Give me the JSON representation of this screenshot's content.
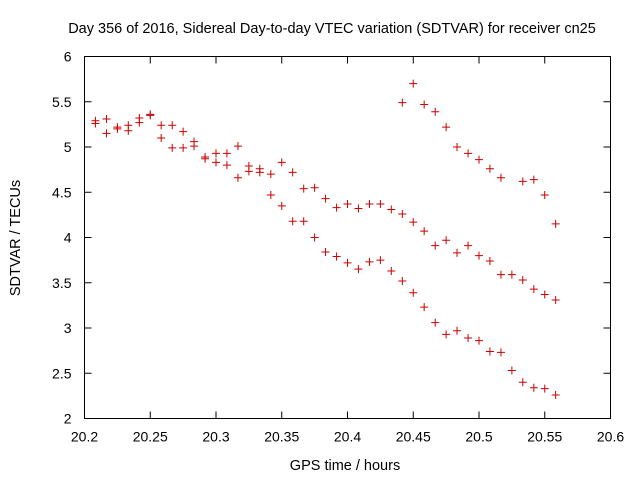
{
  "chart_data": {
    "type": "scatter",
    "title": "Day 356 of 2016, Sidereal Day-to-day VTEC variation (SDTVAR) for receiver cn25",
    "xlabel": "GPS time / hours",
    "ylabel": "SDTVAR / TECUs",
    "xlim": [
      20.2,
      20.6
    ],
    "ylim": [
      2,
      6
    ],
    "xticks": [
      "20.2",
      "20.25",
      "20.3",
      "20.35",
      "20.4",
      "20.45",
      "20.5",
      "20.55",
      "20.6"
    ],
    "yticks": [
      "2",
      "2.5",
      "3",
      "3.5",
      "4",
      "4.5",
      "5",
      "5.5",
      "6"
    ],
    "grid": false,
    "marker": "+",
    "marker_color": "#cc0000",
    "series": [
      {
        "name": "SDTVAR",
        "points": [
          [
            20.2083,
            5.29
          ],
          [
            20.2083,
            5.26
          ],
          [
            20.2167,
            5.31
          ],
          [
            20.2167,
            5.15
          ],
          [
            20.225,
            5.22
          ],
          [
            20.225,
            5.2
          ],
          [
            20.2333,
            5.24
          ],
          [
            20.2333,
            5.18
          ],
          [
            20.2417,
            5.32
          ],
          [
            20.2417,
            5.27
          ],
          [
            20.25,
            5.36
          ],
          [
            20.25,
            5.35
          ],
          [
            20.2583,
            5.24
          ],
          [
            20.2583,
            5.1
          ],
          [
            20.2667,
            5.24
          ],
          [
            20.2667,
            4.99
          ],
          [
            20.275,
            5.17
          ],
          [
            20.275,
            4.99
          ],
          [
            20.2833,
            5.06
          ],
          [
            20.2833,
            5.01
          ],
          [
            20.2917,
            4.89
          ],
          [
            20.2917,
            4.87
          ],
          [
            20.3,
            4.93
          ],
          [
            20.3,
            4.83
          ],
          [
            20.3083,
            4.93
          ],
          [
            20.3083,
            4.8
          ],
          [
            20.3167,
            5.01
          ],
          [
            20.3167,
            4.66
          ],
          [
            20.325,
            4.79
          ],
          [
            20.325,
            4.73
          ],
          [
            20.3333,
            4.76
          ],
          [
            20.3333,
            4.72
          ],
          [
            20.3417,
            4.7
          ],
          [
            20.3417,
            4.47
          ],
          [
            20.35,
            4.83
          ],
          [
            20.35,
            4.35
          ],
          [
            20.3583,
            4.72
          ],
          [
            20.3583,
            4.18
          ],
          [
            20.3667,
            4.54
          ],
          [
            20.3667,
            4.18
          ],
          [
            20.375,
            4.55
          ],
          [
            20.375,
            4.0
          ],
          [
            20.3833,
            4.43
          ],
          [
            20.3833,
            3.84
          ],
          [
            20.3917,
            4.33
          ],
          [
            20.3917,
            3.79
          ],
          [
            20.4,
            4.37
          ],
          [
            20.4,
            3.72
          ],
          [
            20.4083,
            4.32
          ],
          [
            20.4083,
            3.65
          ],
          [
            20.4167,
            4.37
          ],
          [
            20.4167,
            3.73
          ],
          [
            20.425,
            4.37
          ],
          [
            20.425,
            3.75
          ],
          [
            20.4333,
            4.31
          ],
          [
            20.4333,
            3.63
          ],
          [
            20.4417,
            5.49
          ],
          [
            20.4417,
            4.26
          ],
          [
            20.4417,
            3.52
          ],
          [
            20.45,
            5.7
          ],
          [
            20.45,
            4.17
          ],
          [
            20.45,
            3.39
          ],
          [
            20.4583,
            5.47
          ],
          [
            20.4583,
            4.07
          ],
          [
            20.4583,
            3.23
          ],
          [
            20.4667,
            5.39
          ],
          [
            20.4667,
            3.91
          ],
          [
            20.4667,
            3.06
          ],
          [
            20.475,
            5.22
          ],
          [
            20.475,
            3.97
          ],
          [
            20.475,
            2.93
          ],
          [
            20.4833,
            5.0
          ],
          [
            20.4833,
            3.83
          ],
          [
            20.4833,
            2.97
          ],
          [
            20.4917,
            4.93
          ],
          [
            20.4917,
            3.91
          ],
          [
            20.4917,
            2.89
          ],
          [
            20.5,
            4.86
          ],
          [
            20.5,
            3.8
          ],
          [
            20.5,
            2.86
          ],
          [
            20.5083,
            4.76
          ],
          [
            20.5083,
            3.74
          ],
          [
            20.5083,
            2.74
          ],
          [
            20.5167,
            4.66
          ],
          [
            20.5167,
            3.59
          ],
          [
            20.5167,
            2.73
          ],
          [
            20.525,
            3.59
          ],
          [
            20.525,
            2.53
          ],
          [
            20.5333,
            4.62
          ],
          [
            20.5333,
            3.53
          ],
          [
            20.5333,
            2.4
          ],
          [
            20.5417,
            4.64
          ],
          [
            20.5417,
            3.43
          ],
          [
            20.5417,
            2.34
          ],
          [
            20.55,
            4.47
          ],
          [
            20.55,
            3.37
          ],
          [
            20.55,
            2.33
          ],
          [
            20.5583,
            4.15
          ],
          [
            20.5583,
            3.31
          ],
          [
            20.5583,
            2.26
          ]
        ]
      }
    ]
  }
}
